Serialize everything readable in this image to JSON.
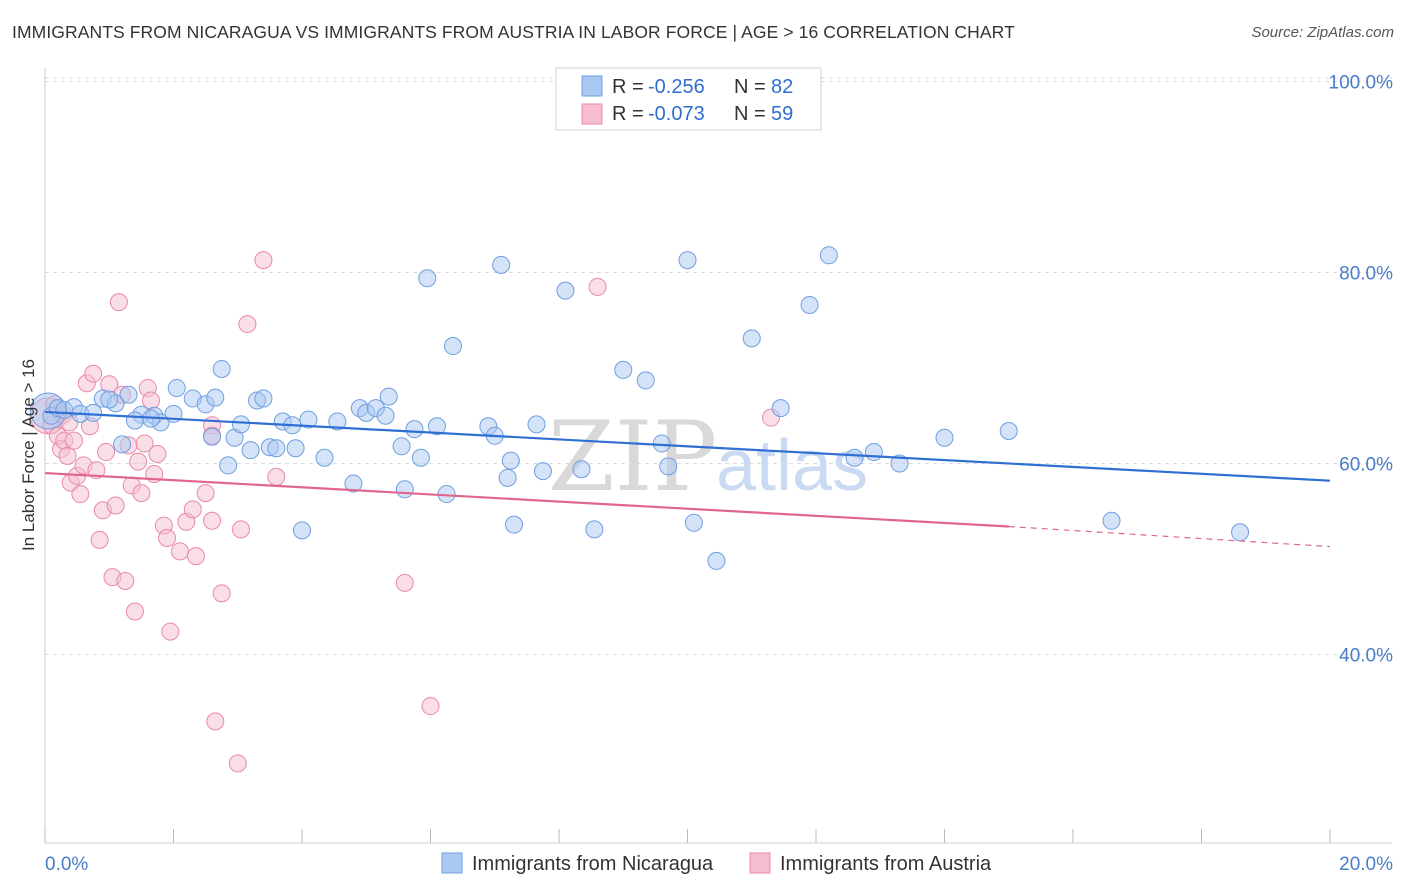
{
  "title": "IMMIGRANTS FROM NICARAGUA VS IMMIGRANTS FROM AUSTRIA IN LABOR FORCE | AGE > 16 CORRELATION CHART",
  "source": "Source: ZipAtlas.com",
  "watermark": {
    "zip": "ZIP",
    "atlas": "atlas"
  },
  "colors": {
    "blue_fill": "#a9c8f2",
    "blue_stroke": "#6f9fe0",
    "blue_line": "#2f6fd1",
    "pink_fill": "#f6bdd0",
    "pink_stroke": "#e88aa8",
    "pink_line": "#e06690",
    "grid": "#dcdcdc",
    "tick_text": "#4a7cc7"
  },
  "legend": {
    "rows": [
      {
        "r_label": "R = ",
        "r_value": "-0.256",
        "n_label": "N = ",
        "n_value": "82"
      },
      {
        "r_label": "R = ",
        "r_value": "-0.073",
        "n_label": "N = ",
        "n_value": "59"
      }
    ]
  },
  "chart_data": {
    "type": "scatter",
    "title": "IMMIGRANTS FROM NICARAGUA VS IMMIGRANTS FROM AUSTRIA IN LABOR FORCE | AGE > 16 CORRELATION CHART",
    "xlabel": "",
    "ylabel": "In Labor Force | Age > 16",
    "xlim": [
      0,
      20
    ],
    "ylim": [
      20,
      103
    ],
    "x_tick_labels": [
      "0.0%",
      "20.0%"
    ],
    "y_ticks": [
      40,
      60,
      80,
      100
    ],
    "y_tick_labels": [
      "40.0%",
      "60.0%",
      "80.0%",
      "100.0%"
    ],
    "grid": true,
    "legend_position": "bottom",
    "series": [
      {
        "name": "Immigrants from Nicaragua",
        "color": "#a9c8f2",
        "trend": {
          "x": [
            0,
            20
          ],
          "y": [
            65.4,
            58.2
          ]
        },
        "points": [
          {
            "x": 0.05,
            "y": 65.5,
            "big": true
          },
          {
            "x": 0.1,
            "y": 65.0
          },
          {
            "x": 0.2,
            "y": 65.8
          },
          {
            "x": 0.3,
            "y": 65.6
          },
          {
            "x": 0.45,
            "y": 65.9
          },
          {
            "x": 0.55,
            "y": 65.2
          },
          {
            "x": 0.75,
            "y": 65.3
          },
          {
            "x": 0.9,
            "y": 66.8
          },
          {
            "x": 1.1,
            "y": 66.3
          },
          {
            "x": 1.0,
            "y": 66.7
          },
          {
            "x": 1.2,
            "y": 62.0
          },
          {
            "x": 1.3,
            "y": 67.2
          },
          {
            "x": 1.5,
            "y": 65.1
          },
          {
            "x": 1.4,
            "y": 64.5
          },
          {
            "x": 1.7,
            "y": 65.0
          },
          {
            "x": 1.8,
            "y": 64.3
          },
          {
            "x": 2.0,
            "y": 65.2
          },
          {
            "x": 1.65,
            "y": 64.7
          },
          {
            "x": 2.05,
            "y": 67.9
          },
          {
            "x": 2.3,
            "y": 66.8
          },
          {
            "x": 2.5,
            "y": 66.2
          },
          {
            "x": 2.6,
            "y": 62.8
          },
          {
            "x": 2.65,
            "y": 66.9
          },
          {
            "x": 2.75,
            "y": 69.9
          },
          {
            "x": 2.85,
            "y": 59.8
          },
          {
            "x": 2.95,
            "y": 62.7
          },
          {
            "x": 3.05,
            "y": 64.1
          },
          {
            "x": 3.2,
            "y": 61.4
          },
          {
            "x": 3.3,
            "y": 66.6
          },
          {
            "x": 3.4,
            "y": 66.8
          },
          {
            "x": 3.5,
            "y": 61.7
          },
          {
            "x": 3.6,
            "y": 61.6
          },
          {
            "x": 3.7,
            "y": 64.4
          },
          {
            "x": 3.9,
            "y": 61.6
          },
          {
            "x": 3.85,
            "y": 64.0
          },
          {
            "x": 4.0,
            "y": 53.0
          },
          {
            "x": 4.1,
            "y": 64.6
          },
          {
            "x": 4.35,
            "y": 60.6
          },
          {
            "x": 4.55,
            "y": 64.4
          },
          {
            "x": 4.8,
            "y": 57.9
          },
          {
            "x": 4.9,
            "y": 65.8
          },
          {
            "x": 5.0,
            "y": 65.3
          },
          {
            "x": 5.15,
            "y": 65.8
          },
          {
            "x": 5.3,
            "y": 65.0
          },
          {
            "x": 5.35,
            "y": 67.0
          },
          {
            "x": 5.6,
            "y": 57.3
          },
          {
            "x": 5.55,
            "y": 61.8
          },
          {
            "x": 5.75,
            "y": 63.6
          },
          {
            "x": 5.85,
            "y": 60.6
          },
          {
            "x": 5.95,
            "y": 79.4
          },
          {
            "x": 6.1,
            "y": 63.9
          },
          {
            "x": 6.25,
            "y": 56.8
          },
          {
            "x": 6.35,
            "y": 72.3
          },
          {
            "x": 6.9,
            "y": 63.9
          },
          {
            "x": 7.0,
            "y": 62.9
          },
          {
            "x": 7.2,
            "y": 58.5
          },
          {
            "x": 7.25,
            "y": 60.3
          },
          {
            "x": 7.1,
            "y": 80.8
          },
          {
            "x": 7.3,
            "y": 53.6
          },
          {
            "x": 7.65,
            "y": 64.1
          },
          {
            "x": 7.75,
            "y": 59.2
          },
          {
            "x": 8.1,
            "y": 78.1
          },
          {
            "x": 8.35,
            "y": 59.4
          },
          {
            "x": 8.55,
            "y": 53.1
          },
          {
            "x": 9.0,
            "y": 69.8
          },
          {
            "x": 9.35,
            "y": 68.7
          },
          {
            "x": 9.6,
            "y": 62.1
          },
          {
            "x": 9.7,
            "y": 59.7
          },
          {
            "x": 10.1,
            "y": 53.8
          },
          {
            "x": 10.45,
            "y": 49.8
          },
          {
            "x": 10.0,
            "y": 81.3
          },
          {
            "x": 11.0,
            "y": 73.1
          },
          {
            "x": 11.45,
            "y": 65.8
          },
          {
            "x": 11.9,
            "y": 76.6
          },
          {
            "x": 12.2,
            "y": 81.8
          },
          {
            "x": 12.6,
            "y": 60.6
          },
          {
            "x": 12.9,
            "y": 61.2
          },
          {
            "x": 13.3,
            "y": 60.0
          },
          {
            "x": 15.0,
            "y": 63.4
          },
          {
            "x": 16.6,
            "y": 54.0
          },
          {
            "x": 18.6,
            "y": 52.8
          },
          {
            "x": 14.0,
            "y": 62.7
          }
        ]
      },
      {
        "name": "Immigrants from Austria",
        "color": "#f6bdd0",
        "trend": {
          "x": [
            0,
            15
          ],
          "y": [
            59.0,
            53.4
          ]
        },
        "trend_dashed": {
          "x": [
            15,
            20
          ],
          "y": [
            53.4,
            51.3
          ]
        },
        "points": [
          {
            "x": 0.05,
            "y": 65.0,
            "big": true
          },
          {
            "x": 0.1,
            "y": 64.0
          },
          {
            "x": 0.2,
            "y": 62.9
          },
          {
            "x": 0.25,
            "y": 61.5
          },
          {
            "x": 0.3,
            "y": 62.4
          },
          {
            "x": 0.35,
            "y": 60.8
          },
          {
            "x": 0.4,
            "y": 58.0
          },
          {
            "x": 0.45,
            "y": 62.4
          },
          {
            "x": 0.5,
            "y": 58.7
          },
          {
            "x": 0.55,
            "y": 56.8
          },
          {
            "x": 0.6,
            "y": 59.8
          },
          {
            "x": 0.65,
            "y": 68.4
          },
          {
            "x": 0.7,
            "y": 63.9
          },
          {
            "x": 0.75,
            "y": 69.4
          },
          {
            "x": 0.8,
            "y": 59.3
          },
          {
            "x": 0.85,
            "y": 52.0
          },
          {
            "x": 0.9,
            "y": 55.1
          },
          {
            "x": 0.95,
            "y": 61.2
          },
          {
            "x": 1.0,
            "y": 68.3
          },
          {
            "x": 1.05,
            "y": 48.1
          },
          {
            "x": 1.1,
            "y": 55.6
          },
          {
            "x": 1.15,
            "y": 76.9
          },
          {
            "x": 1.2,
            "y": 67.2
          },
          {
            "x": 1.25,
            "y": 47.7
          },
          {
            "x": 1.3,
            "y": 61.9
          },
          {
            "x": 1.35,
            "y": 57.7
          },
          {
            "x": 1.4,
            "y": 44.5
          },
          {
            "x": 1.45,
            "y": 60.2
          },
          {
            "x": 1.5,
            "y": 56.9
          },
          {
            "x": 1.55,
            "y": 62.1
          },
          {
            "x": 1.6,
            "y": 67.9
          },
          {
            "x": 1.65,
            "y": 66.6
          },
          {
            "x": 1.7,
            "y": 58.9
          },
          {
            "x": 1.75,
            "y": 61.0
          },
          {
            "x": 1.85,
            "y": 53.5
          },
          {
            "x": 1.9,
            "y": 52.2
          },
          {
            "x": 1.95,
            "y": 42.4
          },
          {
            "x": 2.1,
            "y": 50.8
          },
          {
            "x": 2.2,
            "y": 53.9
          },
          {
            "x": 2.3,
            "y": 55.2
          },
          {
            "x": 2.35,
            "y": 50.3
          },
          {
            "x": 2.5,
            "y": 56.9
          },
          {
            "x": 2.6,
            "y": 64.0
          },
          {
            "x": 2.6,
            "y": 62.9
          },
          {
            "x": 2.6,
            "y": 54.0
          },
          {
            "x": 2.65,
            "y": 33.0
          },
          {
            "x": 2.75,
            "y": 46.4
          },
          {
            "x": 3.0,
            "y": 28.6
          },
          {
            "x": 3.05,
            "y": 53.1
          },
          {
            "x": 3.15,
            "y": 74.6
          },
          {
            "x": 3.4,
            "y": 81.3
          },
          {
            "x": 3.6,
            "y": 58.6
          },
          {
            "x": 5.6,
            "y": 47.5
          },
          {
            "x": 6.0,
            "y": 34.6
          },
          {
            "x": 8.6,
            "y": 78.5
          },
          {
            "x": 11.3,
            "y": 64.8
          },
          {
            "x": 0.15,
            "y": 66.2
          },
          {
            "x": 0.28,
            "y": 65.1
          },
          {
            "x": 0.38,
            "y": 64.3
          }
        ]
      }
    ]
  }
}
